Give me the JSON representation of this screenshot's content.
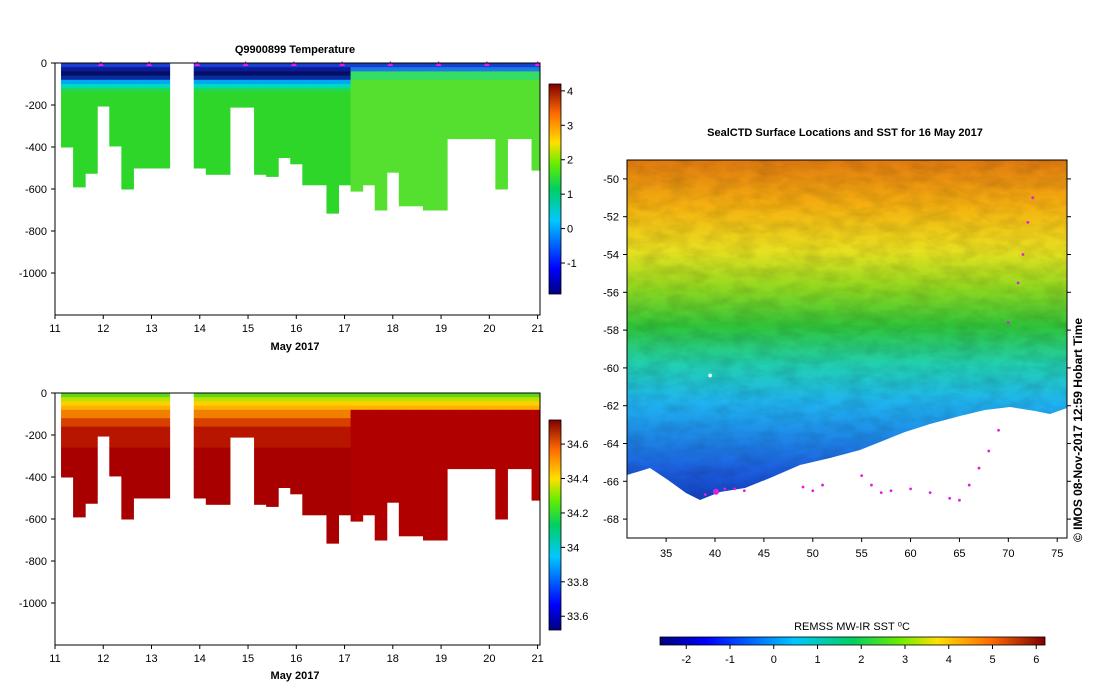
{
  "figure": {
    "credit": "© IMOS 08-Nov-2017 12:59 Hobart Time"
  },
  "chart_data": [
    {
      "type": "heatmap",
      "title": "Q9900899  Temperature",
      "xlabel": "May 2017",
      "ylabel": "",
      "x_ticks": [
        "11",
        "12",
        "13",
        "14",
        "15",
        "16",
        "17",
        "18",
        "19",
        "20",
        "21"
      ],
      "xlim": [
        11,
        21.05
      ],
      "y_ticks": [
        "0",
        "-200",
        "-400",
        "-600",
        "-800",
        "-1000"
      ],
      "ylim": [
        -1200,
        0
      ],
      "colorbar": {
        "ticks": [
          "4",
          "3",
          "2",
          "1",
          "0",
          "-1"
        ],
        "range": [
          -1.9,
          4.2
        ]
      },
      "profiles": [
        {
          "t": 11.25,
          "depth": 400
        },
        {
          "t": 11.5,
          "depth": 590
        },
        {
          "t": 11.75,
          "depth": 525
        },
        {
          "t": 12.0,
          "depth": 205
        },
        {
          "t": 12.25,
          "depth": 395
        },
        {
          "t": 12.5,
          "depth": 600
        },
        {
          "t": 12.75,
          "depth": 500
        },
        {
          "t": 13.0,
          "depth": 500
        },
        {
          "t": 13.25,
          "depth": 500
        },
        {
          "t": 13.5,
          "depth": 0
        },
        {
          "t": 13.75,
          "depth": 0
        },
        {
          "t": 14.0,
          "depth": 500
        },
        {
          "t": 14.25,
          "depth": 530
        },
        {
          "t": 14.5,
          "depth": 530
        },
        {
          "t": 14.75,
          "depth": 210
        },
        {
          "t": 15.0,
          "depth": 210
        },
        {
          "t": 15.25,
          "depth": 530
        },
        {
          "t": 15.5,
          "depth": 540
        },
        {
          "t": 15.75,
          "depth": 450
        },
        {
          "t": 16.0,
          "depth": 480
        },
        {
          "t": 16.25,
          "depth": 580
        },
        {
          "t": 16.5,
          "depth": 580
        },
        {
          "t": 16.75,
          "depth": 715
        },
        {
          "t": 17.0,
          "depth": 580
        },
        {
          "t": 17.25,
          "depth": 610
        },
        {
          "t": 17.5,
          "depth": 580
        },
        {
          "t": 17.75,
          "depth": 700
        },
        {
          "t": 18.0,
          "depth": 520
        },
        {
          "t": 18.25,
          "depth": 680
        },
        {
          "t": 18.5,
          "depth": 680
        },
        {
          "t": 18.75,
          "depth": 700
        },
        {
          "t": 19.0,
          "depth": 700
        },
        {
          "t": 19.25,
          "depth": 360
        },
        {
          "t": 19.5,
          "depth": 360
        },
        {
          "t": 19.75,
          "depth": 360
        },
        {
          "t": 20.0,
          "depth": 360
        },
        {
          "t": 20.25,
          "depth": 600
        },
        {
          "t": 20.5,
          "depth": 360
        },
        {
          "t": 20.75,
          "depth": 360
        },
        {
          "t": 21.0,
          "depth": 510
        }
      ]
    },
    {
      "type": "heatmap",
      "title": "",
      "xlabel": "May 2017",
      "ylabel": "",
      "x_ticks": [
        "11",
        "12",
        "13",
        "14",
        "15",
        "16",
        "17",
        "18",
        "19",
        "20",
        "21"
      ],
      "xlim": [
        11,
        21.05
      ],
      "y_ticks": [
        "0",
        "-200",
        "-400",
        "-600",
        "-800",
        "-1000"
      ],
      "ylim": [
        -1200,
        0
      ],
      "colorbar": {
        "ticks": [
          "34.6",
          "34.4",
          "34.2",
          "34",
          "33.8",
          "33.6"
        ],
        "range": [
          33.52,
          34.74
        ]
      }
    },
    {
      "type": "heatmap",
      "title": "SealCTD Surface Locations and SST for 16 May 2017",
      "x_ticks": [
        "35",
        "40",
        "45",
        "50",
        "55",
        "60",
        "65",
        "70",
        "75"
      ],
      "xlim": [
        31,
        76
      ],
      "y_ticks": [
        "-50",
        "-52",
        "-54",
        "-56",
        "-58",
        "-60",
        "-62",
        "-64",
        "-66",
        "-68"
      ],
      "ylim": [
        -69,
        -49
      ],
      "colorbar": {
        "label": "REMSS MW-IR SST ⁰C",
        "ticks": [
          "-2",
          "-1",
          "0",
          "1",
          "2",
          "3",
          "4",
          "5",
          "6"
        ],
        "range": [
          -2.6,
          6.2
        ]
      }
    }
  ]
}
